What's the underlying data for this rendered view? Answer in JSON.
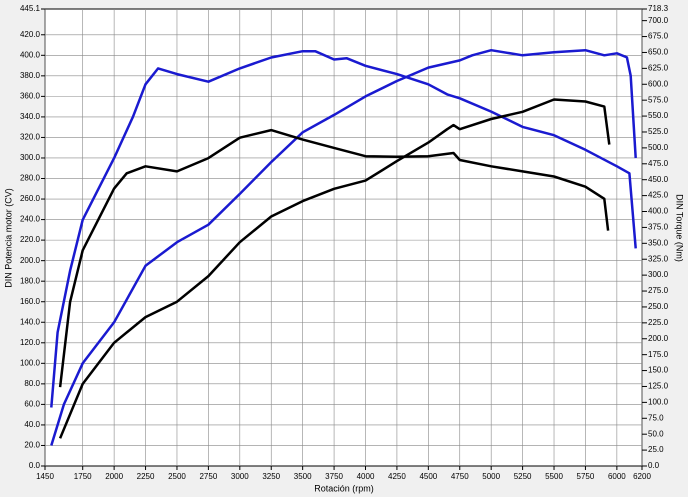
{
  "chart_data": {
    "type": "line",
    "x_label": "Rotación (rpm)",
    "y_label": "DIN Potencia motor (CV)",
    "y2_label": "DIN Torque (Nm)",
    "xlim": [
      1450,
      6200
    ],
    "ylim": [
      0,
      445.1
    ],
    "y2lim": [
      0,
      718.3
    ],
    "grid": true,
    "xticks": [
      1450,
      1750,
      2000,
      2250,
      2500,
      2750,
      3000,
      3250,
      3500,
      3750,
      4000,
      4250,
      4500,
      4750,
      5000,
      5250,
      5500,
      5750,
      6000,
      6200
    ],
    "yticks": [
      {
        "value": 0,
        "label": "0.0"
      },
      {
        "value": 20,
        "label": "20.0"
      },
      {
        "value": 40,
        "label": "40.0"
      },
      {
        "value": 60,
        "label": "60.0"
      },
      {
        "value": 80,
        "label": "80.0"
      },
      {
        "value": 100,
        "label": "100.0"
      },
      {
        "value": 120,
        "label": "120.0"
      },
      {
        "value": 140,
        "label": "140.0"
      },
      {
        "value": 160,
        "label": "160.0"
      },
      {
        "value": 180,
        "label": "180.0"
      },
      {
        "value": 200,
        "label": "200.0"
      },
      {
        "value": 220,
        "label": "220.0"
      },
      {
        "value": 240,
        "label": "240.0"
      },
      {
        "value": 260,
        "label": "260.0"
      },
      {
        "value": 280,
        "label": "280.0"
      },
      {
        "value": 300,
        "label": "300.0"
      },
      {
        "value": 320,
        "label": "320.0"
      },
      {
        "value": 340,
        "label": "340.0"
      },
      {
        "value": 360,
        "label": "360.0"
      },
      {
        "value": 380,
        "label": "380.0"
      },
      {
        "value": 400,
        "label": "400.0"
      },
      {
        "value": 420,
        "label": "420.0"
      },
      445.1
    ],
    "y2ticks": [
      {
        "value": 0,
        "label": "0.0"
      },
      {
        "value": 25,
        "label": "25.0"
      },
      {
        "value": 50,
        "label": "50.0"
      },
      {
        "value": 75,
        "label": "75.0"
      },
      {
        "value": 100,
        "label": "100.0"
      },
      {
        "value": 125,
        "label": "125.0"
      },
      {
        "value": 150,
        "label": "150.0"
      },
      {
        "value": 175,
        "label": "175.0"
      },
      {
        "value": 200,
        "label": "200.0"
      },
      {
        "value": 225,
        "label": "225.0"
      },
      {
        "value": 250,
        "label": "250.0"
      },
      {
        "value": 275,
        "label": "275.0"
      },
      {
        "value": 300,
        "label": "300.0"
      },
      {
        "value": 325,
        "label": "325.0"
      },
      {
        "value": 350,
        "label": "350.0"
      },
      {
        "value": 375,
        "label": "375.0"
      },
      {
        "value": 400,
        "label": "400.0"
      },
      {
        "value": 425,
        "label": "425.0"
      },
      {
        "value": 450,
        "label": "450.0"
      },
      {
        "value": 475,
        "label": "475.0"
      },
      {
        "value": 500,
        "label": "500.0"
      },
      {
        "value": 525,
        "label": "525.0"
      },
      {
        "value": 550,
        "label": "550.0"
      },
      {
        "value": 575,
        "label": "575.0"
      },
      {
        "value": 600,
        "label": "600.0"
      },
      {
        "value": 625,
        "label": "625.0"
      },
      {
        "value": 650,
        "label": "650.0"
      },
      {
        "value": 675,
        "label": "675.0"
      },
      {
        "value": 700,
        "label": "700.0"
      },
      718.3
    ],
    "series": [
      {
        "color": "#1a1ad0",
        "x": [
          1500,
          1600,
          1750,
          2000,
          2250,
          2500,
          2750,
          3000,
          3250,
          3500,
          3750,
          4000,
          4250,
          4500,
          4750,
          4850,
          5000,
          5250,
          5500,
          5750,
          5900,
          6000,
          6080,
          6110,
          6150
        ],
        "values": [
          20,
          60,
          100,
          140,
          195,
          218,
          235,
          265,
          296,
          325,
          342,
          360,
          375,
          388,
          395,
          400,
          405,
          400,
          403,
          405,
          400,
          402,
          398,
          380,
          300
        ]
      },
      {
        "color": "#1a1ad0",
        "axis": "y2",
        "x": [
          1500,
          1550,
          1650,
          1750,
          2000,
          2150,
          2250,
          2350,
          2500,
          2750,
          3000,
          3250,
          3500,
          3600,
          3750,
          3850,
          4000,
          4250,
          4500,
          4650,
          4750,
          5000,
          5250,
          5500,
          5750,
          6000,
          6100,
          6150
        ],
        "values": [
          92,
          210,
          307,
          387,
          484,
          549,
          600,
          625,
          616,
          604,
          625,
          642,
          652,
          652,
          639,
          641,
          629,
          616,
          600,
          584,
          578,
          557,
          533,
          520,
          497,
          471,
          460,
          342
        ]
      },
      {
        "color": "#000000",
        "x": [
          1570,
          1750,
          2000,
          2250,
          2500,
          2750,
          3000,
          3250,
          3500,
          3750,
          4000,
          4250,
          4500,
          4650,
          4700,
          4750,
          5000,
          5250,
          5500,
          5750,
          5900,
          5940
        ],
        "values": [
          27,
          80,
          120,
          145,
          160,
          185,
          218,
          243,
          258,
          270,
          278,
          297,
          315,
          328,
          332,
          328,
          338,
          345,
          357,
          355,
          350,
          313
        ]
      },
      {
        "color": "#000000",
        "axis": "y2",
        "x": [
          1570,
          1650,
          1750,
          2000,
          2100,
          2250,
          2500,
          2750,
          3000,
          3250,
          3500,
          3750,
          4000,
          4250,
          4500,
          4700,
          4750,
          5000,
          5250,
          5500,
          5750,
          5900,
          5930
        ],
        "values": [
          124,
          258,
          339,
          436,
          460,
          471,
          463,
          484,
          516,
          528,
          513,
          500,
          487,
          486,
          487,
          492,
          481,
          471,
          463,
          455,
          439,
          420,
          370
        ]
      }
    ]
  }
}
